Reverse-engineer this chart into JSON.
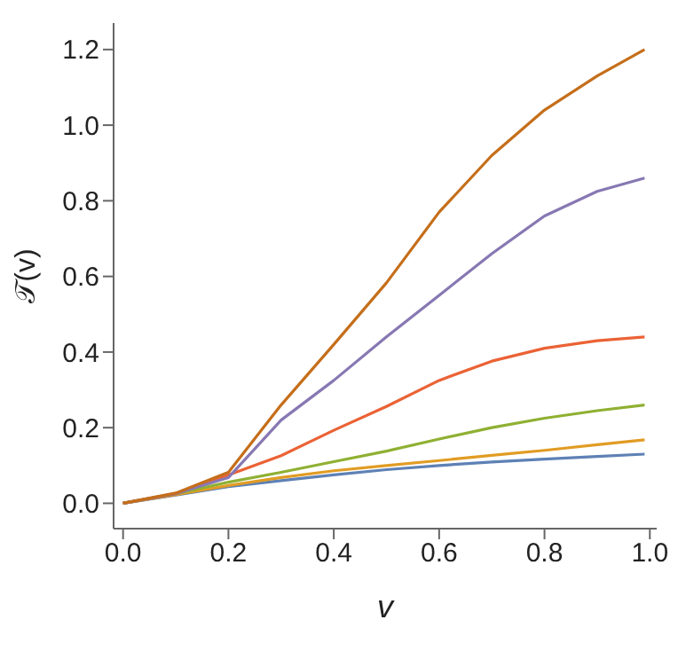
{
  "chart_data": {
    "type": "line",
    "xlabel": "v",
    "ylabel": "𝒯(v)",
    "x": [
      0,
      0.1,
      0.2,
      0.3,
      0.4,
      0.5,
      0.6,
      0.7,
      0.8,
      0.9,
      0.99
    ],
    "series": [
      {
        "color": "#5e81b5",
        "values": [
          0,
          0.022,
          0.044,
          0.06,
          0.075,
          0.089,
          0.1,
          0.109,
          0.117,
          0.124,
          0.13
        ]
      },
      {
        "color": "#e19c24",
        "values": [
          0,
          0.023,
          0.047,
          0.068,
          0.086,
          0.1,
          0.113,
          0.127,
          0.14,
          0.155,
          0.168
        ]
      },
      {
        "color": "#8fb032",
        "values": [
          0,
          0.025,
          0.056,
          0.082,
          0.11,
          0.138,
          0.17,
          0.2,
          0.225,
          0.245,
          0.26
        ]
      },
      {
        "color": "#eb6235",
        "values": [
          0,
          0.025,
          0.075,
          0.126,
          0.193,
          0.256,
          0.325,
          0.376,
          0.41,
          0.43,
          0.44
        ]
      },
      {
        "color": "#8778b3",
        "values": [
          0,
          0.026,
          0.068,
          0.22,
          0.325,
          0.44,
          0.55,
          0.66,
          0.76,
          0.825,
          0.86
        ]
      },
      {
        "color": "#c56e1a",
        "values": [
          0,
          0.027,
          0.082,
          0.26,
          0.42,
          0.583,
          0.77,
          0.92,
          1.04,
          1.13,
          1.2
        ]
      }
    ],
    "xlim": [
      -0.018,
      1.013
    ],
    "ylim": [
      -0.067,
      1.27
    ],
    "xticks": [
      {
        "value": 0,
        "label": "0.0"
      },
      0.2,
      0.4,
      0.6,
      0.8,
      {
        "value": 1,
        "label": "1.0"
      }
    ],
    "yticks": [
      {
        "value": 0,
        "label": "0.0"
      },
      0.2,
      0.4,
      0.6,
      0.8,
      {
        "value": 1,
        "label": "1.0"
      },
      1.2
    ],
    "grid": false,
    "legend": false,
    "marker": "none",
    "line_style": "solid"
  }
}
